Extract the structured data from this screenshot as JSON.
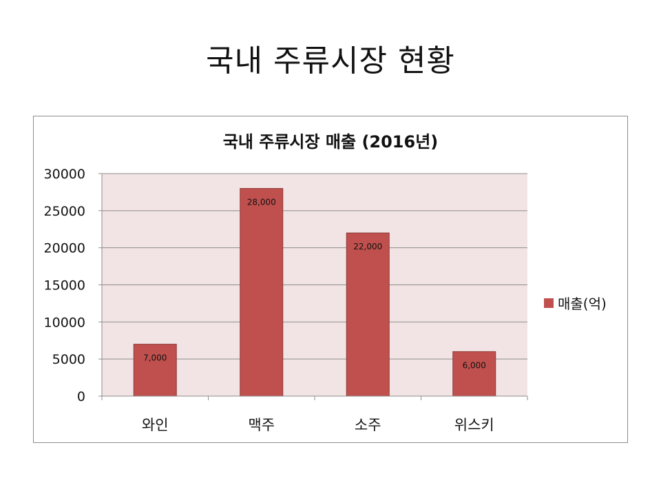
{
  "slide": {
    "title": "국내 주류시장 현황"
  },
  "chart_data": {
    "type": "bar",
    "title": "국내 주류시장 매출 (2016년)",
    "categories": [
      "와인",
      "맥주",
      "소주",
      "위스키"
    ],
    "series": [
      {
        "name": "매출(억)",
        "values": [
          7000,
          28000,
          22000,
          6000
        ],
        "color": "#c0504d"
      }
    ],
    "data_labels": [
      "7,000",
      "28,000",
      "22,000",
      "6,000"
    ],
    "ylim": [
      0,
      30000
    ],
    "yticks": [
      0,
      5000,
      10000,
      15000,
      20000,
      25000,
      30000
    ],
    "ytick_labels": [
      "0",
      "5000",
      "10000",
      "15000",
      "20000",
      "25000",
      "30000"
    ],
    "xlabel": "",
    "ylabel": "",
    "grid": true,
    "legend": "right",
    "plot_background": "#f2e4e4"
  }
}
